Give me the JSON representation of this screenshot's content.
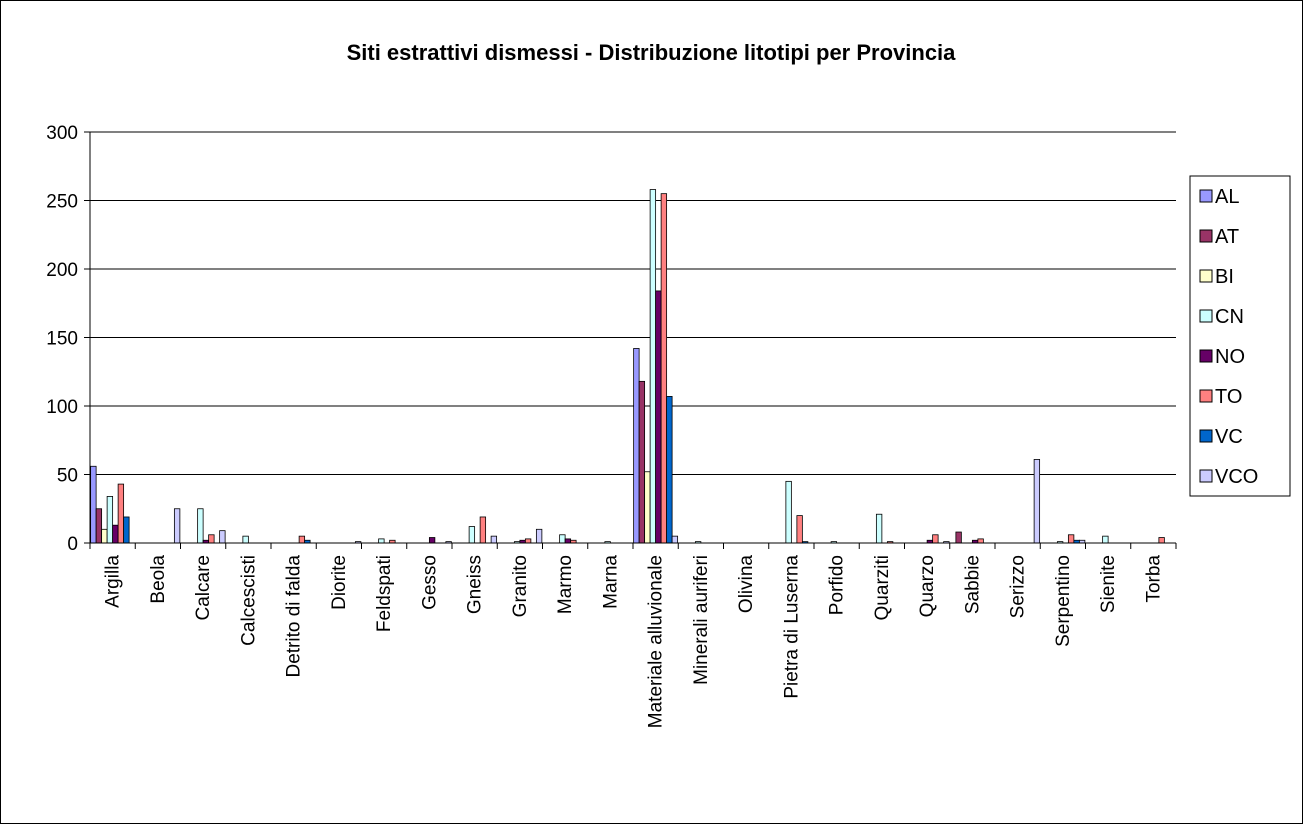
{
  "chart_data": {
    "type": "bar",
    "title": "Siti estrattivi dismessi - Distribuzione litotipi per Provincia",
    "xlabel": "",
    "ylabel": "",
    "ylim": [
      0,
      300
    ],
    "yticks": [
      "0",
      "50",
      "100",
      "150",
      "200",
      "250",
      "300"
    ],
    "grid": true,
    "legend_position": "right",
    "categories": [
      "Argilla",
      "Beola",
      "Calcare",
      "Calcescisti",
      "Detrito di falda",
      "Diorite",
      "Feldspati",
      "Gesso",
      "Gneiss",
      "Granito",
      "Marmo",
      "Marna",
      "Materiale alluvionale",
      "Minerali auriferi",
      "Olivina",
      "Pietra di Luserna",
      "Porfido",
      "Quarziti",
      "Quarzo",
      "Sabbie",
      "Serizzo",
      "Serpentino",
      "Sienite",
      "Torba"
    ],
    "series": [
      {
        "name": "AL",
        "color": "#9999ff",
        "values": [
          56,
          0,
          0,
          0,
          0,
          0,
          0,
          0,
          0,
          0,
          0,
          0,
          142,
          0,
          0,
          0,
          0,
          0,
          0,
          0,
          0,
          0,
          0,
          0
        ]
      },
      {
        "name": "AT",
        "color": "#993366",
        "values": [
          25,
          0,
          0,
          0,
          0,
          0,
          0,
          0,
          0,
          0,
          0,
          0,
          118,
          0,
          0,
          0,
          0,
          0,
          0,
          8,
          0,
          0,
          0,
          0
        ]
      },
      {
        "name": "BI",
        "color": "#ffffcc",
        "values": [
          10,
          0,
          0,
          0,
          0,
          0,
          0,
          0,
          0,
          0,
          0,
          0,
          52,
          0,
          0,
          0,
          0,
          0,
          0,
          0,
          0,
          0,
          0,
          0
        ]
      },
      {
        "name": "CN",
        "color": "#ccffff",
        "values": [
          34,
          0,
          25,
          5,
          0,
          0,
          3,
          0,
          12,
          1,
          6,
          1,
          258,
          1,
          0,
          45,
          1,
          21,
          0,
          0,
          0,
          1,
          5,
          0
        ]
      },
      {
        "name": "NO",
        "color": "#660066",
        "values": [
          13,
          0,
          2,
          0,
          0,
          0,
          0,
          4,
          0,
          2,
          3,
          0,
          184,
          0,
          0,
          0,
          0,
          0,
          2,
          2,
          0,
          0,
          0,
          0
        ]
      },
      {
        "name": "TO",
        "color": "#ff8080",
        "values": [
          43,
          0,
          6,
          0,
          5,
          0,
          2,
          0,
          19,
          3,
          2,
          0,
          255,
          0,
          0,
          20,
          0,
          1,
          6,
          3,
          0,
          6,
          0,
          4
        ]
      },
      {
        "name": "VC",
        "color": "#0066cc",
        "values": [
          19,
          0,
          0,
          0,
          2,
          0,
          0,
          0,
          0,
          0,
          0,
          0,
          107,
          0,
          0,
          1,
          0,
          0,
          0,
          0,
          0,
          2,
          0,
          0
        ]
      },
      {
        "name": "VCO",
        "color": "#ccccff",
        "values": [
          0,
          25,
          9,
          0,
          0,
          1,
          0,
          1,
          5,
          10,
          0,
          0,
          5,
          0,
          0,
          0,
          0,
          0,
          1,
          0,
          61,
          2,
          0,
          0
        ]
      }
    ]
  }
}
